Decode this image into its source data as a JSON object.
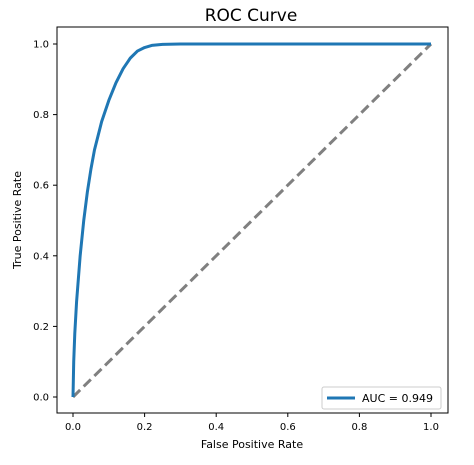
{
  "chart_data": {
    "type": "line",
    "title": "ROC Curve",
    "xlabel": "False Positive Rate",
    "ylabel": "True Positive Rate",
    "xlim": [
      0.0,
      1.0
    ],
    "ylim": [
      0.0,
      1.0
    ],
    "xticks": [
      "0.0",
      "0.2",
      "0.4",
      "0.6",
      "0.8",
      "1.0"
    ],
    "yticks": [
      "0.0",
      "0.2",
      "0.4",
      "0.6",
      "0.8",
      "1.0"
    ],
    "grid": false,
    "legend_position": "lower-right",
    "series": [
      {
        "name": "AUC = 0.949",
        "color": "#1f77b4",
        "style": "solid",
        "x": [
          0.0,
          0.002,
          0.005,
          0.01,
          0.02,
          0.03,
          0.04,
          0.05,
          0.06,
          0.08,
          0.1,
          0.12,
          0.14,
          0.16,
          0.18,
          0.2,
          0.22,
          0.25,
          0.3,
          0.4,
          0.6,
          0.8,
          1.0
        ],
        "y": [
          0.0,
          0.1,
          0.18,
          0.27,
          0.4,
          0.5,
          0.58,
          0.645,
          0.7,
          0.78,
          0.84,
          0.89,
          0.93,
          0.96,
          0.98,
          0.99,
          0.996,
          0.999,
          1.0,
          1.0,
          1.0,
          1.0,
          1.0
        ]
      },
      {
        "name": "",
        "color": "#808080",
        "style": "dashed",
        "x": [
          0.0,
          1.0
        ],
        "y": [
          0.0,
          1.0
        ]
      }
    ]
  }
}
